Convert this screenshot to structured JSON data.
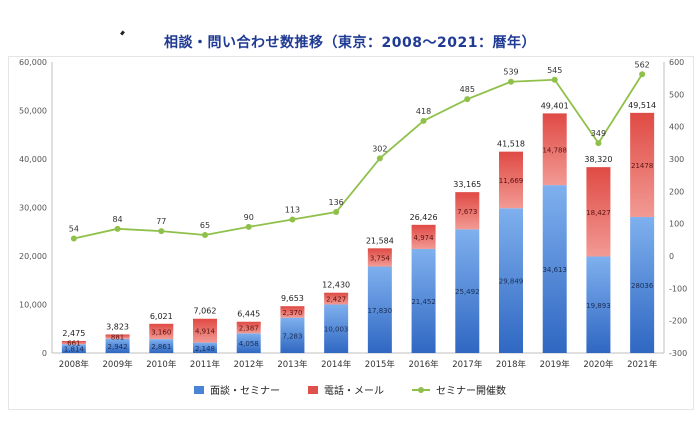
{
  "chart_data": {
    "type": "bar",
    "title": "相談・問い合わせ数推移（東京：2008〜2021：暦年）",
    "categories": [
      "2008年",
      "2009年",
      "2010年",
      "2011年",
      "2012年",
      "2013年",
      "2014年",
      "2015年",
      "2016年",
      "2017年",
      "2018年",
      "2019年",
      "2020年",
      "2021年"
    ],
    "series": [
      {
        "name": "面談・セミナー",
        "kind": "bar",
        "color": "#4a84d6",
        "values": [
          1814,
          2942,
          2861,
          2148,
          4058,
          7283,
          10003,
          17830,
          21452,
          25492,
          29849,
          34613,
          19893,
          28036
        ],
        "labels": [
          "1,814",
          "2,942",
          "2,861",
          "2,148",
          "4,058",
          "7,283",
          "10,003",
          "17,830",
          "21,452",
          "25,492",
          "29,849",
          "34,613",
          "19,893",
          "28036"
        ]
      },
      {
        "name": "電話・メール",
        "kind": "bar",
        "color": "#e0504a",
        "values": [
          661,
          881,
          3160,
          4914,
          2387,
          2370,
          2427,
          3754,
          4974,
          7673,
          11669,
          14788,
          18427,
          21478
        ],
        "labels": [
          "661",
          "881",
          "3,160",
          "4,914",
          "2,387",
          "2,370",
          "2,427",
          "3,754",
          "4,974",
          "7,673",
          "11,669",
          "14,788",
          "18,427",
          "21478"
        ]
      },
      {
        "name": "セミナー開催数",
        "kind": "line",
        "axis": "right",
        "color": "#8fc04a",
        "values": [
          54,
          84,
          77,
          65,
          90,
          113,
          136,
          302,
          418,
          485,
          539,
          545,
          349,
          562
        ],
        "labels": [
          "54",
          "84",
          "77",
          "65",
          "90",
          "113",
          "136",
          "302",
          "418",
          "485",
          "539",
          "545",
          "349",
          "562"
        ]
      }
    ],
    "totals": [
      "2,475",
      "3,823",
      "6,021",
      "7,062",
      "6,445",
      "9,653",
      "12,430",
      "21,584",
      "26,426",
      "33,165",
      "41,518",
      "49,401",
      "38,320",
      "49,514"
    ],
    "left_axis": {
      "min": 0,
      "max": 60000,
      "ticks": [
        "0",
        "10,000",
        "20,000",
        "30,000",
        "40,000",
        "50,000",
        "60,000"
      ]
    },
    "right_axis": {
      "min": -300,
      "max": 600,
      "ticks": [
        "-300",
        "-200",
        "-100",
        "0",
        "100",
        "200",
        "300",
        "400",
        "500",
        "600"
      ]
    },
    "legend_position": "bottom",
    "grid": false
  }
}
